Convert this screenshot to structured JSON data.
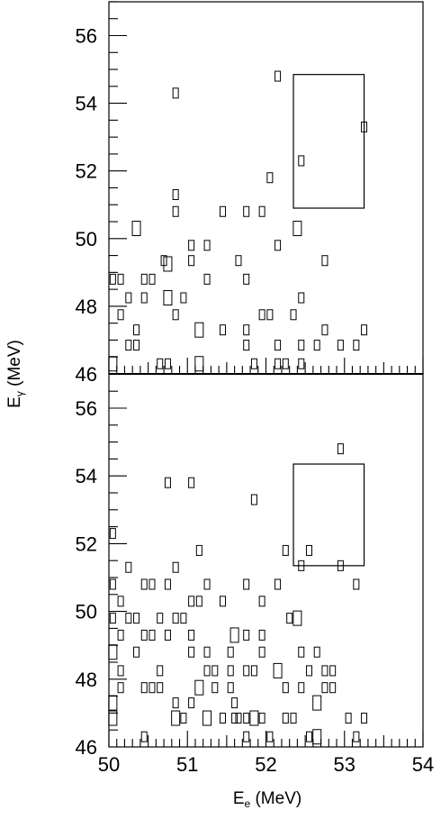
{
  "chart_data": {
    "type": "scatter",
    "xlabel": {
      "main": "E",
      "sub": "e",
      "unit": " (MeV)"
    },
    "ylabel": {
      "main": "E",
      "sub": "γ",
      "unit": " (MeV)"
    },
    "xlim": [
      50,
      54
    ],
    "x_major_ticks": [
      50,
      51,
      52,
      53,
      54
    ],
    "x_tick_labels": [
      "50",
      "51",
      "52",
      "53",
      "54"
    ],
    "grid": false,
    "legend": "none",
    "panels": [
      {
        "ylim": [
          46,
          57
        ],
        "y_major_ticks": [
          46,
          48,
          50,
          52,
          54,
          56
        ],
        "y_tick_labels": [
          "46",
          "48",
          "50",
          "52",
          "54",
          "56"
        ],
        "signal_box": {
          "x": [
            52.35,
            53.25
          ],
          "y": [
            50.9,
            54.85
          ]
        },
        "points": [
          {
            "x": 50.05,
            "y": 46.3,
            "w": 2
          },
          {
            "x": 50.25,
            "y": 46.85,
            "w": 1
          },
          {
            "x": 50.35,
            "y": 46.85,
            "w": 1
          },
          {
            "x": 50.35,
            "y": 47.3,
            "w": 1
          },
          {
            "x": 50.15,
            "y": 47.75,
            "w": 1
          },
          {
            "x": 50.25,
            "y": 48.25,
            "w": 1
          },
          {
            "x": 50.05,
            "y": 48.8,
            "w": 1
          },
          {
            "x": 50.15,
            "y": 48.8,
            "w": 1
          },
          {
            "x": 50.45,
            "y": 48.25,
            "w": 1
          },
          {
            "x": 50.45,
            "y": 48.8,
            "w": 1
          },
          {
            "x": 50.55,
            "y": 48.8,
            "w": 1
          },
          {
            "x": 50.35,
            "y": 50.3,
            "w": 2
          },
          {
            "x": 50.65,
            "y": 46.3,
            "w": 1
          },
          {
            "x": 50.75,
            "y": 46.3,
            "w": 1
          },
          {
            "x": 50.7,
            "y": 49.35,
            "w": 1
          },
          {
            "x": 50.75,
            "y": 49.25,
            "w": 2
          },
          {
            "x": 50.75,
            "y": 48.25,
            "w": 2
          },
          {
            "x": 50.85,
            "y": 47.75,
            "w": 1
          },
          {
            "x": 50.95,
            "y": 48.25,
            "w": 1
          },
          {
            "x": 50.85,
            "y": 50.8,
            "w": 1
          },
          {
            "x": 50.85,
            "y": 51.3,
            "w": 1
          },
          {
            "x": 50.85,
            "y": 54.3,
            "w": 1
          },
          {
            "x": 51.05,
            "y": 49.35,
            "w": 1
          },
          {
            "x": 51.05,
            "y": 49.8,
            "w": 1
          },
          {
            "x": 51.15,
            "y": 46.3,
            "w": 2
          },
          {
            "x": 51.15,
            "y": 47.3,
            "w": 2
          },
          {
            "x": 51.25,
            "y": 48.8,
            "w": 1
          },
          {
            "x": 51.25,
            "y": 49.8,
            "w": 1
          },
          {
            "x": 51.45,
            "y": 47.3,
            "w": 1
          },
          {
            "x": 51.45,
            "y": 50.8,
            "w": 1
          },
          {
            "x": 51.65,
            "y": 49.35,
            "w": 1
          },
          {
            "x": 51.75,
            "y": 46.85,
            "w": 1
          },
          {
            "x": 51.75,
            "y": 47.3,
            "w": 1
          },
          {
            "x": 51.75,
            "y": 48.8,
            "w": 1
          },
          {
            "x": 51.75,
            "y": 50.8,
            "w": 1
          },
          {
            "x": 51.85,
            "y": 46.3,
            "w": 1
          },
          {
            "x": 51.95,
            "y": 47.75,
            "w": 1
          },
          {
            "x": 52.05,
            "y": 47.75,
            "w": 1
          },
          {
            "x": 51.95,
            "y": 50.8,
            "w": 1
          },
          {
            "x": 52.05,
            "y": 51.8,
            "w": 1
          },
          {
            "x": 52.15,
            "y": 46.3,
            "w": 1
          },
          {
            "x": 52.25,
            "y": 46.3,
            "w": 1
          },
          {
            "x": 52.15,
            "y": 46.85,
            "w": 1
          },
          {
            "x": 52.15,
            "y": 49.8,
            "w": 1
          },
          {
            "x": 52.15,
            "y": 54.8,
            "w": 1
          },
          {
            "x": 52.35,
            "y": 47.75,
            "w": 1
          },
          {
            "x": 52.45,
            "y": 48.25,
            "w": 1
          },
          {
            "x": 52.4,
            "y": 50.3,
            "w": 2
          },
          {
            "x": 52.45,
            "y": 46.3,
            "w": 1
          },
          {
            "x": 52.45,
            "y": 46.85,
            "w": 1
          },
          {
            "x": 52.45,
            "y": 52.3,
            "w": 1
          },
          {
            "x": 52.65,
            "y": 46.85,
            "w": 1
          },
          {
            "x": 52.75,
            "y": 47.3,
            "w": 1
          },
          {
            "x": 52.75,
            "y": 49.35,
            "w": 1
          },
          {
            "x": 52.95,
            "y": 46.85,
            "w": 1
          },
          {
            "x": 53.15,
            "y": 46.85,
            "w": 1
          },
          {
            "x": 53.25,
            "y": 47.3,
            "w": 1
          },
          {
            "x": 53.25,
            "y": 53.3,
            "w": 1
          }
        ]
      },
      {
        "ylim": [
          46,
          57
        ],
        "y_major_ticks": [
          46,
          48,
          50,
          52,
          54,
          56
        ],
        "y_tick_labels": [
          "46",
          "48",
          "50",
          "52",
          "54",
          "56"
        ],
        "signal_box": {
          "x": [
            52.35,
            53.25
          ],
          "y": [
            51.35,
            54.35
          ]
        },
        "points": [
          {
            "x": 50.05,
            "y": 46.85,
            "w": 2
          },
          {
            "x": 50.05,
            "y": 47.3,
            "w": 2
          },
          {
            "x": 50.15,
            "y": 47.75,
            "w": 1
          },
          {
            "x": 50.15,
            "y": 48.25,
            "w": 1
          },
          {
            "x": 50.05,
            "y": 48.8,
            "w": 2
          },
          {
            "x": 50.15,
            "y": 49.3,
            "w": 1
          },
          {
            "x": 50.05,
            "y": 49.8,
            "w": 1
          },
          {
            "x": 50.15,
            "y": 50.3,
            "w": 1
          },
          {
            "x": 50.05,
            "y": 50.8,
            "w": 1
          },
          {
            "x": 50.25,
            "y": 51.3,
            "w": 1
          },
          {
            "x": 50.05,
            "y": 52.3,
            "w": 1
          },
          {
            "x": 50.25,
            "y": 49.8,
            "w": 1
          },
          {
            "x": 50.35,
            "y": 49.8,
            "w": 1
          },
          {
            "x": 50.35,
            "y": 48.8,
            "w": 1
          },
          {
            "x": 50.45,
            "y": 47.75,
            "w": 1
          },
          {
            "x": 50.55,
            "y": 47.75,
            "w": 1
          },
          {
            "x": 50.65,
            "y": 47.75,
            "w": 1
          },
          {
            "x": 50.45,
            "y": 49.3,
            "w": 1
          },
          {
            "x": 50.55,
            "y": 49.3,
            "w": 1
          },
          {
            "x": 50.45,
            "y": 50.8,
            "w": 1
          },
          {
            "x": 50.55,
            "y": 50.8,
            "w": 1
          },
          {
            "x": 50.45,
            "y": 46.3,
            "w": 1
          },
          {
            "x": 50.65,
            "y": 48.25,
            "w": 1
          },
          {
            "x": 50.65,
            "y": 49.8,
            "w": 1
          },
          {
            "x": 50.75,
            "y": 49.3,
            "w": 1
          },
          {
            "x": 50.75,
            "y": 50.8,
            "w": 1
          },
          {
            "x": 50.75,
            "y": 53.8,
            "w": 1
          },
          {
            "x": 50.85,
            "y": 46.85,
            "w": 2
          },
          {
            "x": 50.85,
            "y": 47.3,
            "w": 1
          },
          {
            "x": 50.95,
            "y": 46.85,
            "w": 1
          },
          {
            "x": 50.85,
            "y": 49.8,
            "w": 1
          },
          {
            "x": 50.95,
            "y": 49.8,
            "w": 1
          },
          {
            "x": 50.85,
            "y": 51.3,
            "w": 1
          },
          {
            "x": 51.05,
            "y": 47.3,
            "w": 1
          },
          {
            "x": 51.05,
            "y": 48.8,
            "w": 1
          },
          {
            "x": 51.05,
            "y": 49.3,
            "w": 1
          },
          {
            "x": 51.05,
            "y": 50.3,
            "w": 1
          },
          {
            "x": 51.15,
            "y": 50.3,
            "w": 1
          },
          {
            "x": 51.05,
            "y": 53.8,
            "w": 1
          },
          {
            "x": 51.15,
            "y": 47.75,
            "w": 2
          },
          {
            "x": 51.15,
            "y": 51.8,
            "w": 1
          },
          {
            "x": 51.25,
            "y": 46.85,
            "w": 2
          },
          {
            "x": 51.25,
            "y": 48.25,
            "w": 1
          },
          {
            "x": 51.25,
            "y": 48.8,
            "w": 1
          },
          {
            "x": 51.25,
            "y": 50.8,
            "w": 1
          },
          {
            "x": 51.35,
            "y": 47.75,
            "w": 1
          },
          {
            "x": 51.35,
            "y": 48.25,
            "w": 1
          },
          {
            "x": 51.45,
            "y": 46.85,
            "w": 1
          },
          {
            "x": 51.45,
            "y": 50.3,
            "w": 1
          },
          {
            "x": 51.55,
            "y": 47.75,
            "w": 1
          },
          {
            "x": 51.55,
            "y": 48.25,
            "w": 1
          },
          {
            "x": 51.55,
            "y": 48.8,
            "w": 1
          },
          {
            "x": 51.6,
            "y": 49.3,
            "w": 2
          },
          {
            "x": 51.6,
            "y": 47.3,
            "w": 1
          },
          {
            "x": 51.6,
            "y": 46.85,
            "w": 1
          },
          {
            "x": 51.65,
            "y": 46.85,
            "w": 1
          },
          {
            "x": 51.75,
            "y": 46.85,
            "w": 1
          },
          {
            "x": 51.75,
            "y": 48.25,
            "w": 1
          },
          {
            "x": 51.75,
            "y": 49.3,
            "w": 1
          },
          {
            "x": 51.75,
            "y": 50.8,
            "w": 1
          },
          {
            "x": 51.75,
            "y": 46.3,
            "w": 1
          },
          {
            "x": 51.85,
            "y": 48.25,
            "w": 1
          },
          {
            "x": 51.85,
            "y": 46.85,
            "w": 2
          },
          {
            "x": 51.85,
            "y": 53.3,
            "w": 1
          },
          {
            "x": 51.95,
            "y": 46.85,
            "w": 1
          },
          {
            "x": 51.95,
            "y": 48.8,
            "w": 1
          },
          {
            "x": 51.95,
            "y": 49.3,
            "w": 1
          },
          {
            "x": 51.95,
            "y": 50.3,
            "w": 1
          },
          {
            "x": 52.05,
            "y": 46.3,
            "w": 1
          },
          {
            "x": 52.15,
            "y": 48.25,
            "w": 2
          },
          {
            "x": 52.15,
            "y": 50.8,
            "w": 1
          },
          {
            "x": 52.25,
            "y": 51.8,
            "w": 1
          },
          {
            "x": 52.25,
            "y": 47.75,
            "w": 1
          },
          {
            "x": 52.25,
            "y": 46.85,
            "w": 1
          },
          {
            "x": 52.35,
            "y": 46.85,
            "w": 1
          },
          {
            "x": 52.3,
            "y": 49.8,
            "w": 1
          },
          {
            "x": 52.4,
            "y": 49.8,
            "w": 2
          },
          {
            "x": 52.45,
            "y": 48.8,
            "w": 1
          },
          {
            "x": 52.45,
            "y": 47.75,
            "w": 1
          },
          {
            "x": 52.45,
            "y": 51.35,
            "w": 1
          },
          {
            "x": 52.55,
            "y": 48.25,
            "w": 1
          },
          {
            "x": 52.55,
            "y": 46.3,
            "w": 1
          },
          {
            "x": 52.55,
            "y": 51.8,
            "w": 1
          },
          {
            "x": 52.65,
            "y": 46.3,
            "w": 2
          },
          {
            "x": 52.65,
            "y": 47.3,
            "w": 2
          },
          {
            "x": 52.65,
            "y": 48.8,
            "w": 1
          },
          {
            "x": 52.75,
            "y": 47.75,
            "w": 1
          },
          {
            "x": 52.75,
            "y": 48.25,
            "w": 1
          },
          {
            "x": 52.85,
            "y": 47.75,
            "w": 1
          },
          {
            "x": 52.85,
            "y": 48.25,
            "w": 1
          },
          {
            "x": 52.95,
            "y": 51.35,
            "w": 1
          },
          {
            "x": 52.95,
            "y": 54.8,
            "w": 1
          },
          {
            "x": 53.05,
            "y": 46.85,
            "w": 1
          },
          {
            "x": 53.15,
            "y": 46.3,
            "w": 1
          },
          {
            "x": 53.15,
            "y": 50.8,
            "w": 1
          },
          {
            "x": 53.25,
            "y": 46.85,
            "w": 1
          }
        ]
      }
    ]
  }
}
